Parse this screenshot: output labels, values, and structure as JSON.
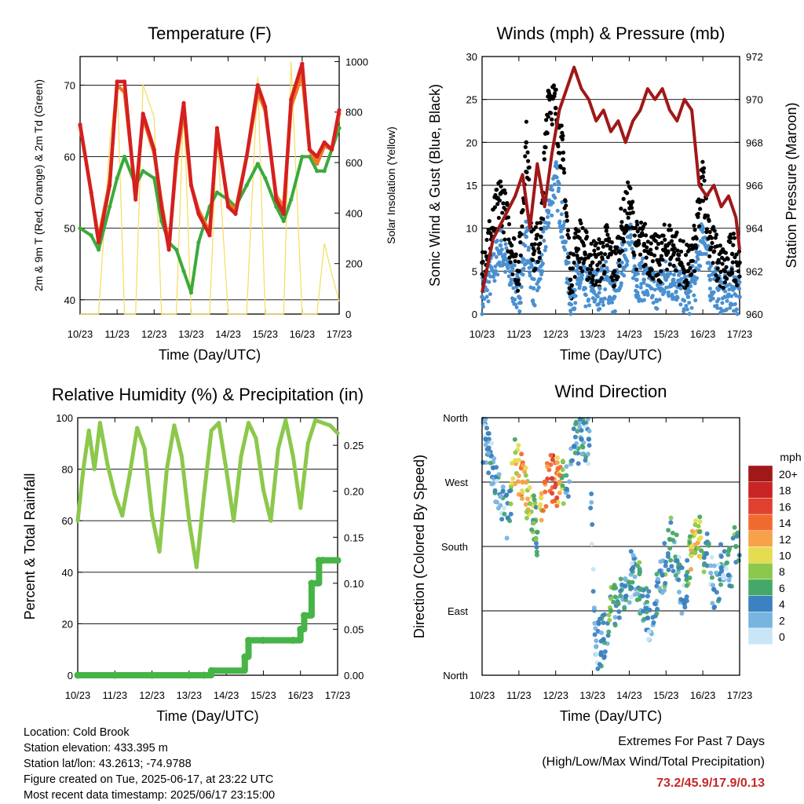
{
  "x_tick_labels": [
    "10/23",
    "11/23",
    "12/23",
    "13/23",
    "14/23",
    "15/23",
    "16/23",
    "17/23"
  ],
  "x_axis_label": "Time (Day/UTC)",
  "chart_data": [
    {
      "type": "line",
      "title": "Temperature (F)",
      "ylabel": "2m & 9m T (Red, Orange) & 2m Td (Green)",
      "y2label": "Solar Insolation (Yellow)",
      "ylim": [
        38,
        74
      ],
      "yticks": [
        40,
        50,
        60,
        70
      ],
      "y2lim": [
        0,
        1020
      ],
      "y2ticks": [
        0,
        200,
        400,
        600,
        800,
        1000
      ],
      "x": [
        0,
        0.3,
        0.5,
        0.8,
        1.0,
        1.2,
        1.5,
        1.7,
        2.0,
        2.2,
        2.4,
        2.6,
        2.8,
        3.0,
        3.2,
        3.5,
        3.7,
        4.0,
        4.2,
        4.5,
        4.8,
        5.0,
        5.3,
        5.5,
        5.7,
        6.0,
        6.2,
        6.4,
        6.6,
        6.8,
        7.0
      ],
      "series": [
        {
          "values": [
            64.5,
            55,
            48,
            56,
            70.5,
            70.5,
            54,
            66,
            61,
            53,
            47,
            60,
            67.5,
            56,
            52,
            49,
            64,
            53,
            52,
            60,
            70,
            67,
            54,
            52,
            68,
            73,
            61,
            60,
            62,
            61,
            66.5
          ],
          "color": "#d42020"
        },
        {
          "values": [
            64.3,
            55,
            48.5,
            56.5,
            70,
            69,
            55,
            65.5,
            60.5,
            53.5,
            47.5,
            59,
            66.5,
            56,
            52.5,
            49.5,
            63.5,
            53.5,
            52.5,
            60,
            69,
            66.5,
            54.5,
            53,
            67,
            71.5,
            61,
            59,
            61.5,
            61,
            66
          ],
          "color": "#f07820"
        },
        {
          "values": [
            50,
            49,
            47,
            53,
            57,
            60,
            56,
            58,
            57,
            51,
            48,
            47,
            44,
            41,
            48,
            53,
            55,
            54,
            53,
            56,
            59,
            57,
            53,
            51,
            54,
            60,
            60,
            58,
            58,
            61,
            64
          ],
          "color": "#3aaa3a"
        }
      ],
      "solar": {
        "values": [
          0,
          0,
          0,
          680,
          930,
          0,
          0,
          910,
          780,
          0,
          0,
          0,
          840,
          0,
          0,
          0,
          710,
          0,
          0,
          0,
          940,
          0,
          0,
          0,
          1000,
          0,
          0,
          0,
          280,
          160,
          50
        ],
        "color": "#f5dc5a"
      }
    },
    {
      "type": "scatter",
      "title": "Winds (mph) & Pressure (mb)",
      "ylabel": "Sonic Wind & Gust (Blue, Black)",
      "y2label": "Station Pressure (Maroon)",
      "ylim": [
        0,
        30
      ],
      "yticks": [
        0,
        5,
        10,
        15,
        20,
        25,
        30
      ],
      "y2lim": [
        960,
        972
      ],
      "y2ticks": [
        960,
        962,
        964,
        966,
        968,
        970,
        972
      ],
      "wind_x": [
        0,
        0.3,
        0.5,
        0.8,
        1.0,
        1.2,
        1.4,
        1.6,
        1.8,
        2.0,
        2.2,
        2.4,
        2.6,
        2.8,
        3.0,
        3.2,
        3.4,
        3.6,
        3.8,
        4.0,
        4.2,
        4.4,
        4.6,
        4.8,
        5.0,
        5.2,
        5.4,
        5.6,
        5.8,
        6.0,
        6.2,
        6.4,
        6.6,
        6.8,
        7.0
      ],
      "wind": [
        2,
        5,
        8,
        4,
        2,
        9,
        3,
        5,
        12,
        16,
        10,
        2,
        4,
        3,
        3,
        3,
        4,
        2,
        6,
        9,
        4,
        4,
        3,
        3,
        4,
        4,
        3,
        2,
        4,
        10,
        4,
        3,
        2,
        3,
        2
      ],
      "gust": [
        6,
        10,
        14,
        8,
        5,
        20,
        7,
        9,
        26,
        24,
        18,
        4,
        9,
        7,
        6,
        6,
        8,
        5,
        10,
        13,
        8,
        8,
        7,
        6,
        8,
        8,
        6,
        5,
        8,
        16,
        9,
        6,
        5,
        7,
        6
      ],
      "pressure_x": [
        0,
        0.3,
        0.6,
        0.9,
        1.1,
        1.3,
        1.5,
        1.7,
        1.9,
        2.1,
        2.3,
        2.5,
        2.7,
        2.9,
        3.1,
        3.3,
        3.5,
        3.7,
        3.9,
        4.1,
        4.3,
        4.5,
        4.7,
        4.9,
        5.1,
        5.3,
        5.5,
        5.7,
        5.9,
        6.1,
        6.3,
        6.5,
        6.7,
        6.9,
        7.0
      ],
      "pressure": [
        961,
        963.5,
        964.5,
        965.5,
        966.5,
        964,
        967,
        965,
        967.5,
        969.5,
        970.5,
        971.5,
        970.5,
        970,
        969,
        969.5,
        968.5,
        969,
        968,
        969,
        969.5,
        970.5,
        970,
        970.5,
        969.5,
        969,
        970,
        969.5,
        966,
        965.5,
        966,
        965,
        965.5,
        964.5,
        963
      ],
      "wind_color": "#4a90d0",
      "gust_color": "#000000",
      "pressure_color": "#a01818"
    },
    {
      "type": "line",
      "title": "Relative Humidity (%) & Precipitation (in)",
      "ylabel": "Percent & Total Rainfall",
      "ylim": [
        0,
        100
      ],
      "yticks": [
        0,
        20,
        40,
        60,
        80,
        100
      ],
      "y2lim": [
        0,
        0.28
      ],
      "y2ticks": [
        0.0,
        0.05,
        0.1,
        0.15,
        0.2,
        0.25
      ],
      "y2tick_labels": [
        "0.00",
        "0.05",
        "0.10",
        "0.15",
        "0.20",
        "0.25"
      ],
      "x": [
        0,
        0.15,
        0.3,
        0.45,
        0.6,
        0.8,
        1.0,
        1.2,
        1.4,
        1.6,
        1.8,
        2.0,
        2.2,
        2.4,
        2.6,
        2.8,
        3.0,
        3.2,
        3.4,
        3.6,
        3.8,
        4.0,
        4.2,
        4.4,
        4.6,
        4.8,
        5.0,
        5.2,
        5.4,
        5.6,
        5.8,
        6.0,
        6.2,
        6.4,
        6.6,
        6.8,
        7.0
      ],
      "rh": [
        60,
        80,
        95,
        80,
        98,
        82,
        70,
        62,
        78,
        96,
        88,
        62,
        48,
        80,
        97,
        85,
        60,
        42,
        70,
        95,
        98,
        80,
        60,
        85,
        98,
        92,
        72,
        60,
        88,
        99,
        85,
        65,
        90,
        99,
        98,
        97,
        94
      ],
      "precip_x": [
        0,
        1.0,
        2.0,
        3.0,
        3.4,
        3.6,
        4.5,
        4.6,
        5.0,
        5.8,
        6.0,
        6.1,
        6.3,
        6.5,
        6.6,
        7.0
      ],
      "precip": [
        0,
        0,
        0,
        0,
        0,
        0.005,
        0.02,
        0.038,
        0.038,
        0.038,
        0.05,
        0.065,
        0.1,
        0.125,
        0.125,
        0.125
      ],
      "rh_color": "#8cc84b",
      "precip_color": "#46b446"
    },
    {
      "type": "scatter",
      "title": "Wind Direction",
      "ylabel": "Direction (Colored By Speed)",
      "ytick_labels": [
        "North",
        "East",
        "South",
        "West",
        "North"
      ],
      "colorbar": {
        "title": "mph",
        "labels": [
          "20+",
          "18",
          "16",
          "14",
          "12",
          "10",
          "8",
          "6",
          "4",
          "2",
          "0"
        ],
        "colors": [
          "#a01818",
          "#c82424",
          "#e04030",
          "#f06a30",
          "#f7a24a",
          "#e6dc50",
          "#8cc84b",
          "#46a868",
          "#3c82c0",
          "#78b4e0",
          "#c8e6f8"
        ]
      },
      "x": [
        0.1,
        0.3,
        0.5,
        0.7,
        0.9,
        1.1,
        1.3,
        1.5,
        1.7,
        1.9,
        2.1,
        2.3,
        2.5,
        2.7,
        2.9,
        3.1,
        3.3,
        3.5,
        3.7,
        3.9,
        4.1,
        4.3,
        4.5,
        4.7,
        4.9,
        5.1,
        5.3,
        5.5,
        5.7,
        5.9,
        6.1,
        6.3,
        6.5,
        6.7,
        6.9
      ],
      "dir": [
        330,
        290,
        250,
        220,
        300,
        270,
        240,
        200,
        270,
        275,
        270,
        260,
        320,
        330,
        330,
        40,
        50,
        90,
        100,
        110,
        150,
        120,
        80,
        100,
        140,
        190,
        160,
        100,
        180,
        190,
        170,
        120,
        150,
        140,
        180
      ],
      "speed": [
        3,
        4,
        2,
        4,
        10,
        12,
        8,
        5,
        14,
        15,
        12,
        3,
        4,
        4,
        3,
        2,
        3,
        6,
        5,
        4,
        3,
        5,
        3,
        4,
        4,
        6,
        4,
        3,
        10,
        9,
        4,
        3,
        3,
        4,
        5
      ]
    }
  ],
  "info": {
    "location": "Location: Cold Brook",
    "elevation": "Station elevation: 433.395 m",
    "latlon": "Station lat/lon: 43.2613; -74.9788",
    "created": "Figure created on Tue, 2025-06-17, at 23:22 UTC",
    "recent": "Most recent data timestamp: 2025/06/17 23:15:00"
  },
  "extremes": {
    "title": "Extremes For Past 7 Days",
    "subtitle": "(High/Low/Max Wind/Total Precipitation)",
    "values": "73.2/45.9/17.9/0.13"
  }
}
